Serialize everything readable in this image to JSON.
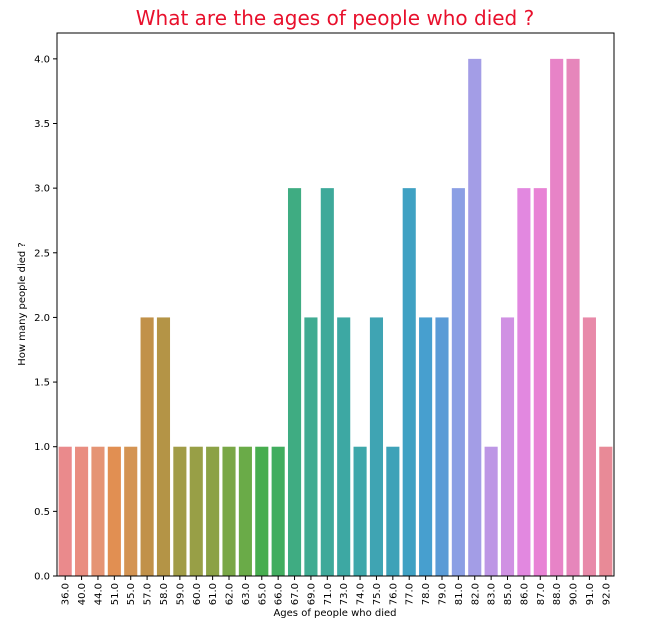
{
  "chart_data": {
    "type": "bar",
    "title": "What are the ages of people who died ?",
    "xlabel": "Ages of people who died",
    "ylabel": "How many people died ?",
    "ylim": [
      0,
      4.2
    ],
    "yticks": [
      "0.0",
      "0.5",
      "1.0",
      "1.5",
      "2.0",
      "2.5",
      "3.0",
      "3.5",
      "4.0"
    ],
    "grid": false,
    "categories": [
      "36.0",
      "40.0",
      "44.0",
      "51.0",
      "55.0",
      "57.0",
      "58.0",
      "59.0",
      "60.0",
      "61.0",
      "62.0",
      "63.0",
      "65.0",
      "66.0",
      "67.0",
      "69.0",
      "71.0",
      "73.0",
      "74.0",
      "75.0",
      "76.0",
      "77.0",
      "78.0",
      "79.0",
      "81.0",
      "82.0",
      "83.0",
      "85.0",
      "86.0",
      "87.0",
      "88.0",
      "90.0",
      "91.0",
      "92.0"
    ],
    "values": [
      1,
      1,
      1,
      1,
      1,
      2,
      2,
      1,
      1,
      1,
      1,
      1,
      1,
      1,
      3,
      2,
      3,
      2,
      1,
      2,
      1,
      3,
      2,
      2,
      3,
      4,
      1,
      2,
      3,
      3,
      4,
      4,
      2,
      1
    ],
    "colors": [
      "#ea8a8c",
      "#e98d80",
      "#e59474",
      "#e18f52",
      "#d49453",
      "#c19149",
      "#b49446",
      "#a19c47",
      "#989f46",
      "#8ca246",
      "#79a746",
      "#6aab48",
      "#47ad4f",
      "#41ad5f",
      "#3fac82",
      "#40ab92",
      "#3ea99a",
      "#3da8a3",
      "#3ea7aa",
      "#3fa4b3",
      "#3ea2b8",
      "#3fa1c3",
      "#479fcf",
      "#5a9bd6",
      "#8b9fe4",
      "#a39de6",
      "#bd97e5",
      "#d091e3",
      "#e288e0",
      "#e883d5",
      "#e783c7",
      "#e686bb",
      "#e88aa9",
      "#e88a97"
    ]
  }
}
